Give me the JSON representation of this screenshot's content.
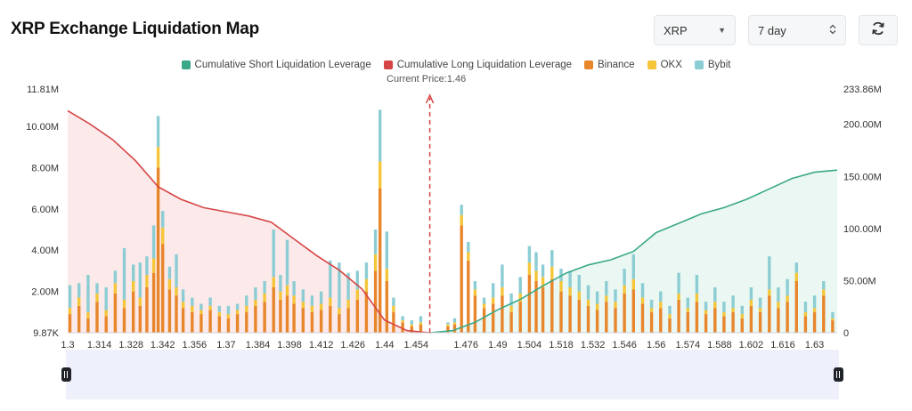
{
  "page": {
    "title": "XRP Exchange Liquidation Map"
  },
  "controls": {
    "symbol": "XRP",
    "period": "7 day",
    "symbol_caret": "▼",
    "period_caret": "⌃⌄"
  },
  "colors": {
    "short_line": "#3aa888",
    "short_fill": "#e3f4ee",
    "long_line": "#d64545",
    "long_fill": "#fbe3e3",
    "binance": "#e8862c",
    "okx": "#f5c63a",
    "bybit": "#8ccdd4",
    "current_price": "#d64545"
  },
  "chart_data": {
    "type": "bar",
    "title": "",
    "current_price": 1.46,
    "current_price_label": "Current Price:1.46",
    "legend": [
      "Cumulative Short Liquidation Leverage",
      "Cumulative Long Liquidation Leverage",
      "Binance",
      "OKX",
      "Bybit"
    ],
    "x_range": [
      1.3,
      1.64
    ],
    "x_ticks": [
      "1.3",
      "1.314",
      "1.328",
      "1.342",
      "1.356",
      "1.37",
      "1.384",
      "1.398",
      "1.412",
      "1.426",
      "1.44",
      "1.454",
      "1.476",
      "1.49",
      "1.504",
      "1.518",
      "1.532",
      "1.546",
      "1.56",
      "1.574",
      "1.588",
      "1.602",
      "1.616",
      "1.63"
    ],
    "x_tick_values": [
      1.3,
      1.314,
      1.328,
      1.342,
      1.356,
      1.37,
      1.384,
      1.398,
      1.412,
      1.426,
      1.44,
      1.454,
      1.476,
      1.49,
      1.504,
      1.518,
      1.532,
      1.546,
      1.56,
      1.574,
      1.588,
      1.602,
      1.616,
      1.63
    ],
    "y_left": {
      "range": [
        0,
        11810000
      ],
      "ticks": [
        "9.87K",
        "2.00M",
        "4.00M",
        "6.00M",
        "8.00M",
        "10.00M",
        "11.81M"
      ],
      "tick_values": [
        0,
        2000000,
        4000000,
        6000000,
        8000000,
        10000000,
        11810000
      ]
    },
    "y_right": {
      "range": [
        0,
        233860000
      ],
      "ticks": [
        "0",
        "50.00M",
        "100.00M",
        "150.00M",
        "200.00M",
        "233.86M"
      ],
      "tick_values": [
        0,
        50000000,
        100000000,
        150000000,
        200000000,
        233860000
      ]
    },
    "bars": [
      {
        "x": 1.301,
        "binance": 0.9,
        "okx": 0.3,
        "bybit": 1.1
      },
      {
        "x": 1.305,
        "binance": 1.3,
        "okx": 0.4,
        "bybit": 0.7
      },
      {
        "x": 1.309,
        "binance": 0.7,
        "okx": 0.3,
        "bybit": 1.8
      },
      {
        "x": 1.313,
        "binance": 1.5,
        "okx": 0.4,
        "bybit": 0.5
      },
      {
        "x": 1.317,
        "binance": 0.8,
        "okx": 0.3,
        "bybit": 1.1
      },
      {
        "x": 1.321,
        "binance": 1.9,
        "okx": 0.5,
        "bybit": 0.6
      },
      {
        "x": 1.325,
        "binance": 1.2,
        "okx": 0.4,
        "bybit": 2.5
      },
      {
        "x": 1.329,
        "binance": 2.0,
        "okx": 0.5,
        "bybit": 0.8
      },
      {
        "x": 1.332,
        "binance": 1.3,
        "okx": 0.4,
        "bybit": 1.7
      },
      {
        "x": 1.335,
        "binance": 2.2,
        "okx": 0.6,
        "bybit": 0.9
      },
      {
        "x": 1.338,
        "binance": 2.9,
        "okx": 0.7,
        "bybit": 1.6
      },
      {
        "x": 1.34,
        "binance": 8.0,
        "okx": 1.0,
        "bybit": 1.5
      },
      {
        "x": 1.342,
        "binance": 4.3,
        "okx": 0.8,
        "bybit": 0.8
      },
      {
        "x": 1.345,
        "binance": 2.1,
        "okx": 0.5,
        "bybit": 0.6
      },
      {
        "x": 1.348,
        "binance": 1.8,
        "okx": 0.4,
        "bybit": 1.6
      },
      {
        "x": 1.351,
        "binance": 1.2,
        "okx": 0.3,
        "bybit": 0.6
      },
      {
        "x": 1.355,
        "binance": 1.0,
        "okx": 0.3,
        "bybit": 0.4
      },
      {
        "x": 1.359,
        "binance": 0.9,
        "okx": 0.2,
        "bybit": 0.3
      },
      {
        "x": 1.363,
        "binance": 1.1,
        "okx": 0.2,
        "bybit": 0.4
      },
      {
        "x": 1.367,
        "binance": 0.8,
        "okx": 0.2,
        "bybit": 0.3
      },
      {
        "x": 1.371,
        "binance": 0.7,
        "okx": 0.2,
        "bybit": 0.4
      },
      {
        "x": 1.375,
        "binance": 0.9,
        "okx": 0.2,
        "bybit": 0.3
      },
      {
        "x": 1.379,
        "binance": 1.0,
        "okx": 0.3,
        "bybit": 0.5
      },
      {
        "x": 1.383,
        "binance": 1.3,
        "okx": 0.3,
        "bybit": 0.6
      },
      {
        "x": 1.387,
        "binance": 1.5,
        "okx": 0.4,
        "bybit": 0.6
      },
      {
        "x": 1.391,
        "binance": 2.2,
        "okx": 0.5,
        "bybit": 2.3
      },
      {
        "x": 1.394,
        "binance": 1.6,
        "okx": 0.4,
        "bybit": 0.8
      },
      {
        "x": 1.397,
        "binance": 1.8,
        "okx": 0.5,
        "bybit": 2.2
      },
      {
        "x": 1.4,
        "binance": 1.4,
        "okx": 0.4,
        "bybit": 0.7
      },
      {
        "x": 1.404,
        "binance": 1.2,
        "okx": 0.3,
        "bybit": 0.6
      },
      {
        "x": 1.408,
        "binance": 1.0,
        "okx": 0.3,
        "bybit": 0.5
      },
      {
        "x": 1.412,
        "binance": 1.1,
        "okx": 0.3,
        "bybit": 0.6
      },
      {
        "x": 1.416,
        "binance": 1.3,
        "okx": 0.4,
        "bybit": 1.8
      },
      {
        "x": 1.42,
        "binance": 0.9,
        "okx": 0.3,
        "bybit": 2.2
      },
      {
        "x": 1.424,
        "binance": 1.2,
        "okx": 0.4,
        "bybit": 1.3
      },
      {
        "x": 1.428,
        "binance": 1.6,
        "okx": 0.5,
        "bybit": 0.9
      },
      {
        "x": 1.432,
        "binance": 2.0,
        "okx": 0.6,
        "bybit": 0.8
      },
      {
        "x": 1.436,
        "binance": 3.0,
        "okx": 0.8,
        "bybit": 1.2
      },
      {
        "x": 1.438,
        "binance": 7.0,
        "okx": 1.3,
        "bybit": 2.5
      },
      {
        "x": 1.441,
        "binance": 2.5,
        "okx": 0.6,
        "bybit": 1.8
      },
      {
        "x": 1.444,
        "binance": 1.0,
        "okx": 0.3,
        "bybit": 0.4
      },
      {
        "x": 1.448,
        "binance": 0.5,
        "okx": 0.1,
        "bybit": 0.2
      },
      {
        "x": 1.452,
        "binance": 0.3,
        "okx": 0.1,
        "bybit": 0.2
      },
      {
        "x": 1.456,
        "binance": 0.4,
        "okx": 0.1,
        "bybit": 0.3
      },
      {
        "x": 1.468,
        "binance": 0.3,
        "okx": 0.1,
        "bybit": 0.1
      },
      {
        "x": 1.471,
        "binance": 0.4,
        "okx": 0.1,
        "bybit": 0.2
      },
      {
        "x": 1.474,
        "binance": 5.2,
        "okx": 0.5,
        "bybit": 0.5
      },
      {
        "x": 1.477,
        "binance": 3.5,
        "okx": 0.4,
        "bybit": 0.5
      },
      {
        "x": 1.48,
        "binance": 1.8,
        "okx": 0.3,
        "bybit": 0.4
      },
      {
        "x": 1.484,
        "binance": 1.2,
        "okx": 0.2,
        "bybit": 0.3
      },
      {
        "x": 1.488,
        "binance": 1.4,
        "okx": 0.3,
        "bybit": 0.7
      },
      {
        "x": 1.492,
        "binance": 1.8,
        "okx": 0.4,
        "bybit": 1.1
      },
      {
        "x": 1.496,
        "binance": 1.0,
        "okx": 0.3,
        "bybit": 0.6
      },
      {
        "x": 1.5,
        "binance": 1.5,
        "okx": 0.4,
        "bybit": 0.8
      },
      {
        "x": 1.504,
        "binance": 2.8,
        "okx": 0.6,
        "bybit": 0.8
      },
      {
        "x": 1.507,
        "binance": 2.5,
        "okx": 0.5,
        "bybit": 0.9
      },
      {
        "x": 1.51,
        "binance": 2.2,
        "okx": 0.5,
        "bybit": 0.6
      },
      {
        "x": 1.514,
        "binance": 2.6,
        "okx": 0.6,
        "bybit": 0.8
      },
      {
        "x": 1.518,
        "binance": 2.0,
        "okx": 0.5,
        "bybit": 0.6
      },
      {
        "x": 1.522,
        "binance": 1.8,
        "okx": 0.4,
        "bybit": 0.8
      },
      {
        "x": 1.526,
        "binance": 1.6,
        "okx": 0.4,
        "bybit": 0.8
      },
      {
        "x": 1.53,
        "binance": 1.3,
        "okx": 0.3,
        "bybit": 0.7
      },
      {
        "x": 1.534,
        "binance": 1.1,
        "okx": 0.3,
        "bybit": 0.6
      },
      {
        "x": 1.538,
        "binance": 1.5,
        "okx": 0.3,
        "bybit": 0.7
      },
      {
        "x": 1.542,
        "binance": 1.2,
        "okx": 0.3,
        "bybit": 0.6
      },
      {
        "x": 1.546,
        "binance": 1.9,
        "okx": 0.4,
        "bybit": 0.8
      },
      {
        "x": 1.55,
        "binance": 2.1,
        "okx": 0.5,
        "bybit": 1.2
      },
      {
        "x": 1.554,
        "binance": 1.4,
        "okx": 0.3,
        "bybit": 0.7
      },
      {
        "x": 1.558,
        "binance": 1.0,
        "okx": 0.2,
        "bybit": 0.4
      },
      {
        "x": 1.562,
        "binance": 1.2,
        "okx": 0.3,
        "bybit": 0.5
      },
      {
        "x": 1.566,
        "binance": 0.7,
        "okx": 0.2,
        "bybit": 0.4
      },
      {
        "x": 1.57,
        "binance": 1.6,
        "okx": 0.3,
        "bybit": 1.0
      },
      {
        "x": 1.574,
        "binance": 1.0,
        "okx": 0.2,
        "bybit": 0.5
      },
      {
        "x": 1.578,
        "binance": 1.5,
        "okx": 0.4,
        "bybit": 0.9
      },
      {
        "x": 1.582,
        "binance": 0.9,
        "okx": 0.2,
        "bybit": 0.4
      },
      {
        "x": 1.586,
        "binance": 1.2,
        "okx": 0.3,
        "bybit": 0.7
      },
      {
        "x": 1.59,
        "binance": 0.8,
        "okx": 0.2,
        "bybit": 0.5
      },
      {
        "x": 1.594,
        "binance": 1.0,
        "okx": 0.2,
        "bybit": 0.6
      },
      {
        "x": 1.598,
        "binance": 0.7,
        "okx": 0.2,
        "bybit": 0.4
      },
      {
        "x": 1.602,
        "binance": 1.3,
        "okx": 0.3,
        "bybit": 0.6
      },
      {
        "x": 1.606,
        "binance": 1.0,
        "okx": 0.2,
        "bybit": 0.5
      },
      {
        "x": 1.61,
        "binance": 1.8,
        "okx": 0.3,
        "bybit": 1.6
      },
      {
        "x": 1.614,
        "binance": 1.2,
        "okx": 0.3,
        "bybit": 0.7
      },
      {
        "x": 1.618,
        "binance": 1.5,
        "okx": 0.3,
        "bybit": 0.8
      },
      {
        "x": 1.622,
        "binance": 2.5,
        "okx": 0.4,
        "bybit": 0.5
      },
      {
        "x": 1.626,
        "binance": 0.8,
        "okx": 0.2,
        "bybit": 0.5
      },
      {
        "x": 1.63,
        "binance": 1.0,
        "okx": 0.2,
        "bybit": 0.6
      },
      {
        "x": 1.634,
        "binance": 1.8,
        "okx": 0.3,
        "bybit": 0.4
      },
      {
        "x": 1.638,
        "binance": 0.6,
        "okx": 0.1,
        "bybit": 0.3
      }
    ],
    "bars_unit": "millions",
    "series": [
      {
        "name": "Cumulative Long Liquidation Leverage",
        "unit": "millions",
        "x": [
          1.3,
          1.31,
          1.32,
          1.33,
          1.34,
          1.35,
          1.36,
          1.37,
          1.38,
          1.39,
          1.4,
          1.41,
          1.42,
          1.43,
          1.44,
          1.45,
          1.46
        ],
        "values": [
          213,
          200,
          185,
          165,
          140,
          128,
          120,
          116,
          112,
          106,
          90,
          74,
          60,
          42,
          12,
          2,
          0
        ]
      },
      {
        "name": "Cumulative Short Liquidation Leverage",
        "unit": "millions",
        "x": [
          1.46,
          1.47,
          1.48,
          1.49,
          1.5,
          1.51,
          1.52,
          1.53,
          1.54,
          1.55,
          1.56,
          1.57,
          1.58,
          1.59,
          1.6,
          1.61,
          1.62,
          1.63,
          1.64
        ],
        "values": [
          0,
          2,
          10,
          22,
          32,
          45,
          57,
          65,
          70,
          78,
          96,
          105,
          114,
          120,
          128,
          138,
          148,
          154,
          156
        ]
      }
    ]
  }
}
